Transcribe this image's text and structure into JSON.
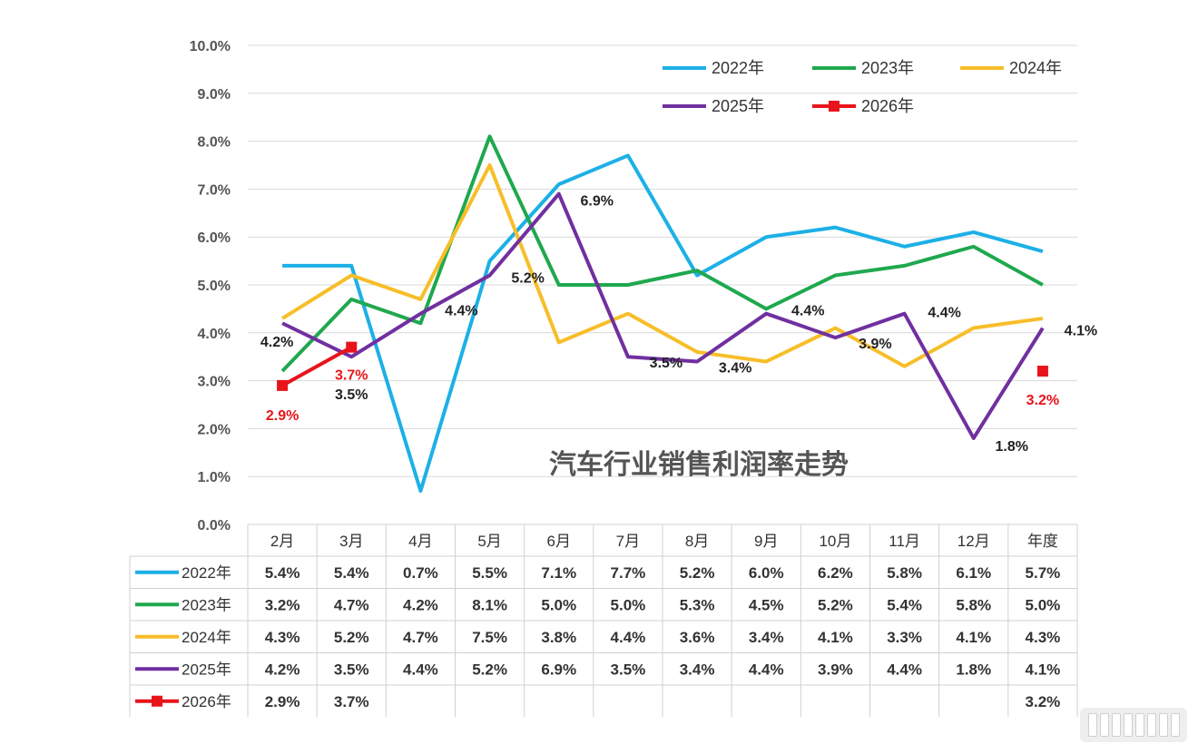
{
  "chart_data": {
    "type": "line",
    "title": "汽车行业销售利润率走势",
    "categories": [
      "2月",
      "3月",
      "4月",
      "5月",
      "6月",
      "7月",
      "8月",
      "9月",
      "10月",
      "11月",
      "12月",
      "年度"
    ],
    "ylim": [
      0,
      10
    ],
    "yticks": [
      "0.0%",
      "1.0%",
      "2.0%",
      "3.0%",
      "4.0%",
      "5.0%",
      "6.0%",
      "7.0%",
      "8.0%",
      "9.0%",
      "10.0%"
    ],
    "grid": true,
    "legend_position": "top-right",
    "series": [
      {
        "name": "2022年",
        "color": "#1CB0E6",
        "marker": "none",
        "values": [
          5.4,
          5.4,
          0.7,
          5.5,
          7.1,
          7.7,
          5.2,
          6.0,
          6.2,
          5.8,
          6.1,
          5.7
        ],
        "table": [
          "5.4%",
          "5.4%",
          "0.7%",
          "5.5%",
          "7.1%",
          "7.7%",
          "5.2%",
          "6.0%",
          "6.2%",
          "5.8%",
          "6.1%",
          "5.7%"
        ]
      },
      {
        "name": "2023年",
        "color": "#1FA84F",
        "marker": "none",
        "values": [
          3.2,
          4.7,
          4.2,
          8.1,
          5.0,
          5.0,
          5.3,
          4.5,
          5.2,
          5.4,
          5.8,
          5.0
        ],
        "table": [
          "3.2%",
          "4.7%",
          "4.2%",
          "8.1%",
          "5.0%",
          "5.0%",
          "5.3%",
          "4.5%",
          "5.2%",
          "5.4%",
          "5.8%",
          "5.0%"
        ]
      },
      {
        "name": "2024年",
        "color": "#F7BE29",
        "marker": "none",
        "values": [
          4.3,
          5.2,
          4.7,
          7.5,
          3.8,
          4.4,
          3.6,
          3.4,
          4.1,
          3.3,
          4.1,
          4.3
        ],
        "table": [
          "4.3%",
          "5.2%",
          "4.7%",
          "7.5%",
          "3.8%",
          "4.4%",
          "3.6%",
          "3.4%",
          "4.1%",
          "3.3%",
          "4.1%",
          "4.3%"
        ]
      },
      {
        "name": "2025年",
        "color": "#7030A0",
        "marker": "none",
        "values": [
          4.2,
          3.5,
          4.4,
          5.2,
          6.9,
          3.5,
          3.4,
          4.4,
          3.9,
          4.4,
          1.8,
          4.1
        ],
        "table": [
          "4.2%",
          "3.5%",
          "4.4%",
          "5.2%",
          "6.9%",
          "3.5%",
          "3.4%",
          "4.4%",
          "3.9%",
          "4.4%",
          "1.8%",
          "4.1%"
        ]
      },
      {
        "name": "2026年",
        "color": "#E8141B",
        "marker": "square",
        "values": [
          2.9,
          3.7,
          null,
          null,
          null,
          null,
          null,
          null,
          null,
          null,
          null,
          3.2
        ],
        "table": [
          "2.9%",
          "3.7%",
          "",
          "",
          "",
          "",
          "",
          "",
          "",
          "",
          "",
          "3.2%"
        ]
      }
    ],
    "data_labels": [
      {
        "series": 3,
        "index": 0,
        "text": "4.2%",
        "color": "#222222"
      },
      {
        "series": 3,
        "index": 1,
        "text": "3.5%",
        "color": "#222222"
      },
      {
        "series": 3,
        "index": 2,
        "text": "4.4%",
        "color": "#222222"
      },
      {
        "series": 3,
        "index": 3,
        "text": "5.2%",
        "color": "#222222"
      },
      {
        "series": 3,
        "index": 4,
        "text": "6.9%",
        "color": "#222222"
      },
      {
        "series": 3,
        "index": 5,
        "text": "3.5%",
        "color": "#222222"
      },
      {
        "series": 3,
        "index": 6,
        "text": "3.4%",
        "color": "#222222"
      },
      {
        "series": 3,
        "index": 7,
        "text": "4.4%",
        "color": "#222222"
      },
      {
        "series": 3,
        "index": 8,
        "text": "3.9%",
        "color": "#222222"
      },
      {
        "series": 3,
        "index": 9,
        "text": "4.4%",
        "color": "#222222"
      },
      {
        "series": 3,
        "index": 10,
        "text": "1.8%",
        "color": "#222222"
      },
      {
        "series": 3,
        "index": 11,
        "text": "4.1%",
        "color": "#222222"
      },
      {
        "series": 4,
        "index": 0,
        "text": "2.9%",
        "color": "#E8141B"
      },
      {
        "series": 4,
        "index": 1,
        "text": "3.7%",
        "color": "#E8141B"
      },
      {
        "series": 4,
        "index": 11,
        "text": "3.2%",
        "color": "#E8141B"
      }
    ]
  }
}
